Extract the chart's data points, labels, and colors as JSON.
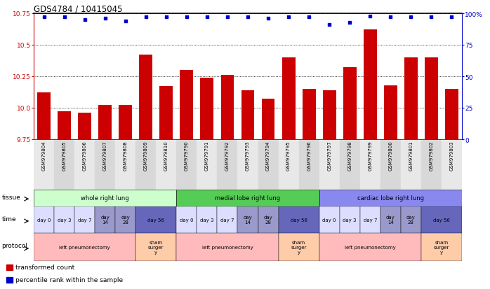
{
  "title": "GDS4784 / 10415045",
  "samples": [
    "GSM979804",
    "GSM979805",
    "GSM979806",
    "GSM979807",
    "GSM979808",
    "GSM979809",
    "GSM979810",
    "GSM979790",
    "GSM979791",
    "GSM979792",
    "GSM979793",
    "GSM979794",
    "GSM979795",
    "GSM979796",
    "GSM979797",
    "GSM979798",
    "GSM979799",
    "GSM979800",
    "GSM979801",
    "GSM979802",
    "GSM979803"
  ],
  "bar_values": [
    10.12,
    9.97,
    9.96,
    10.02,
    10.02,
    10.42,
    10.17,
    10.3,
    10.24,
    10.26,
    10.14,
    10.07,
    10.4,
    10.15,
    10.14,
    10.32,
    10.62,
    10.18,
    10.4,
    10.4,
    10.15
  ],
  "percentile_values": [
    97,
    97,
    95,
    96,
    94,
    97,
    97,
    97,
    97,
    97,
    97,
    96,
    97,
    97,
    91,
    93,
    98,
    97,
    97,
    97,
    97
  ],
  "bar_color": "#cc0000",
  "percentile_color": "#0000cc",
  "ylim_left": [
    9.75,
    10.75
  ],
  "ylim_right": [
    0,
    100
  ],
  "yticks_left": [
    9.75,
    10.0,
    10.25,
    10.5,
    10.75
  ],
  "yticks_right": [
    0,
    25,
    50,
    75,
    100
  ],
  "ytick_labels_right": [
    "0",
    "25",
    "50",
    "75",
    "100%"
  ],
  "tissue_groups": [
    {
      "label": "whole right lung",
      "start": 0,
      "end": 6,
      "color": "#ccffcc"
    },
    {
      "label": "medial lobe right lung",
      "start": 7,
      "end": 13,
      "color": "#55cc55"
    },
    {
      "label": "cardiac lobe right lung",
      "start": 14,
      "end": 20,
      "color": "#8888ee"
    }
  ],
  "time_groups": [
    {
      "label": "day 0",
      "start": 0,
      "end": 0,
      "color": "#ddddff"
    },
    {
      "label": "day 3",
      "start": 1,
      "end": 1,
      "color": "#ddddff"
    },
    {
      "label": "day 7",
      "start": 2,
      "end": 2,
      "color": "#ddddff"
    },
    {
      "label": "day\n14",
      "start": 3,
      "end": 3,
      "color": "#9999cc"
    },
    {
      "label": "day\n28",
      "start": 4,
      "end": 4,
      "color": "#9999cc"
    },
    {
      "label": "day 56",
      "start": 5,
      "end": 6,
      "color": "#6666bb"
    },
    {
      "label": "day 0",
      "start": 7,
      "end": 7,
      "color": "#ddddff"
    },
    {
      "label": "day 3",
      "start": 8,
      "end": 8,
      "color": "#ddddff"
    },
    {
      "label": "day 7",
      "start": 9,
      "end": 9,
      "color": "#ddddff"
    },
    {
      "label": "day\n14",
      "start": 10,
      "end": 10,
      "color": "#9999cc"
    },
    {
      "label": "day\n28",
      "start": 11,
      "end": 11,
      "color": "#9999cc"
    },
    {
      "label": "day 56",
      "start": 12,
      "end": 13,
      "color": "#6666bb"
    },
    {
      "label": "day 0",
      "start": 14,
      "end": 14,
      "color": "#ddddff"
    },
    {
      "label": "day 3",
      "start": 15,
      "end": 15,
      "color": "#ddddff"
    },
    {
      "label": "day 7",
      "start": 16,
      "end": 16,
      "color": "#ddddff"
    },
    {
      "label": "day\n14",
      "start": 17,
      "end": 17,
      "color": "#9999cc"
    },
    {
      "label": "day\n28",
      "start": 18,
      "end": 18,
      "color": "#9999cc"
    },
    {
      "label": "day 56",
      "start": 19,
      "end": 20,
      "color": "#6666bb"
    }
  ],
  "protocol_groups": [
    {
      "label": "left pneumonectomy",
      "start": 0,
      "end": 4,
      "color": "#ffbbbb"
    },
    {
      "label": "sham\nsurger\ny",
      "start": 5,
      "end": 6,
      "color": "#ffccaa"
    },
    {
      "label": "left pneumonectomy",
      "start": 7,
      "end": 11,
      "color": "#ffbbbb"
    },
    {
      "label": "sham\nsurger\ny",
      "start": 12,
      "end": 13,
      "color": "#ffccaa"
    },
    {
      "label": "left pneumonectomy",
      "start": 14,
      "end": 18,
      "color": "#ffbbbb"
    },
    {
      "label": "sham\nsurger\ny",
      "start": 19,
      "end": 20,
      "color": "#ffccaa"
    }
  ],
  "legend_items": [
    {
      "label": "transformed count",
      "color": "#cc0000"
    },
    {
      "label": "percentile rank within the sample",
      "color": "#0000cc"
    }
  ],
  "bar_bottom": 9.75
}
